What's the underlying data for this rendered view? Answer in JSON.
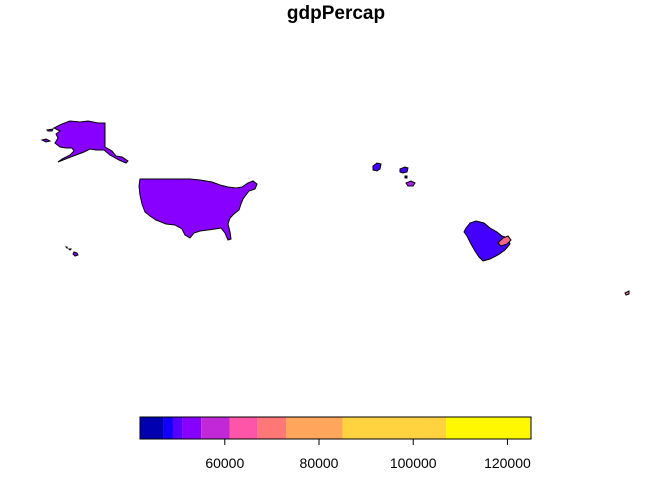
{
  "map": {
    "title": "gdpPercap",
    "regions": [
      {
        "id": "alaska",
        "name": "Alaska",
        "fill": "#8800FF"
      },
      {
        "id": "usa",
        "name": "United States",
        "fill": "#8800FF"
      },
      {
        "id": "hawaii",
        "name": "Hawaii",
        "fill": "#8800FF"
      },
      {
        "id": "kuwait",
        "name": "Kuwait",
        "fill": "#4400FF"
      },
      {
        "id": "bahrain",
        "name": "Bahrain",
        "fill": "#4400FF"
      },
      {
        "id": "qatar",
        "name": "Qatar",
        "fill": "#AA22EE"
      },
      {
        "id": "saudi-arabia",
        "name": "Saudi Arabia",
        "fill": "#4400FF"
      },
      {
        "id": "uae",
        "name": "United Arab Emirates",
        "fill": "#FF6688"
      },
      {
        "id": "singapore",
        "name": "Singapore",
        "fill": "#FF6688"
      }
    ]
  },
  "legend": {
    "range": [
      42000,
      125000
    ],
    "bins": [
      {
        "from": 42000,
        "to": 47000,
        "color": "#0000B0"
      },
      {
        "from": 47000,
        "to": 49000,
        "color": "#1100FF"
      },
      {
        "from": 49000,
        "to": 51000,
        "color": "#5500FF"
      },
      {
        "from": 51000,
        "to": 55000,
        "color": "#8800FF"
      },
      {
        "from": 55000,
        "to": 61000,
        "color": "#C228D8"
      },
      {
        "from": 61000,
        "to": 67000,
        "color": "#FF55A8"
      },
      {
        "from": 67000,
        "to": 73000,
        "color": "#FF7777"
      },
      {
        "from": 73000,
        "to": 85000,
        "color": "#FFA55C"
      },
      {
        "from": 85000,
        "to": 107000,
        "color": "#FFD340"
      },
      {
        "from": 107000,
        "to": 125000,
        "color": "#FFF800"
      }
    ],
    "ticks": [
      {
        "value": 60000,
        "label": "60000"
      },
      {
        "value": 80000,
        "label": "80000"
      },
      {
        "value": 100000,
        "label": "100000"
      },
      {
        "value": 120000,
        "label": "120000"
      }
    ]
  }
}
